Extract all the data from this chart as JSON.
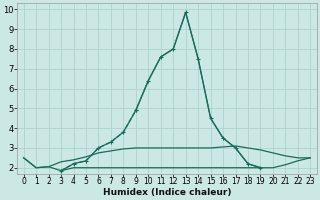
{
  "xlabel": "Humidex (Indice chaleur)",
  "bg_color": "#cce8e4",
  "grid_color": "#aed4cf",
  "line_color": "#1a6b5a",
  "xlim": [
    -0.5,
    23.5
  ],
  "ylim": [
    1.7,
    10.3
  ],
  "xticks": [
    0,
    1,
    2,
    3,
    4,
    5,
    6,
    7,
    8,
    9,
    10,
    11,
    12,
    13,
    14,
    15,
    16,
    17,
    18,
    19,
    20,
    21,
    22,
    23
  ],
  "yticks": [
    2,
    3,
    4,
    5,
    6,
    7,
    8,
    9,
    10
  ],
  "series": [
    {
      "x": [
        9,
        10,
        11,
        12,
        13,
        14,
        15,
        16,
        17,
        18,
        19
      ],
      "y": [
        4.9,
        6.4,
        7.6,
        8.0,
        9.85,
        7.5,
        4.5,
        3.5,
        3.0,
        2.2,
        2.0
      ],
      "marker": true
    },
    {
      "x": [
        3,
        4,
        5,
        6,
        7,
        8,
        9,
        10,
        11,
        12,
        13,
        14,
        15,
        16,
        17,
        18,
        19
      ],
      "y": [
        1.85,
        2.2,
        2.35,
        3.0,
        3.3,
        3.8,
        4.9,
        6.4,
        7.6,
        8.0,
        9.85,
        7.5,
        4.5,
        3.5,
        3.0,
        2.2,
        2.0
      ],
      "marker": false
    },
    {
      "x": [
        0,
        1,
        2,
        3,
        4,
        5,
        6,
        7,
        8,
        9,
        10,
        11,
        12,
        13,
        14,
        15,
        16,
        17,
        18,
        19,
        20,
        21,
        22,
        23
      ],
      "y": [
        2.5,
        2.0,
        2.05,
        2.3,
        2.4,
        2.55,
        2.75,
        2.85,
        2.95,
        3.0,
        3.0,
        3.0,
        3.0,
        3.0,
        3.0,
        3.0,
        3.05,
        3.1,
        3.0,
        2.9,
        2.75,
        2.6,
        2.5,
        2.5
      ],
      "marker": false
    },
    {
      "x": [
        0,
        1,
        2,
        3,
        4,
        5,
        6,
        7,
        8,
        9,
        10,
        11,
        12,
        13,
        14,
        15,
        16,
        17,
        18,
        19,
        20,
        21,
        22,
        23
      ],
      "y": [
        2.5,
        2.0,
        2.05,
        1.85,
        2.0,
        2.0,
        2.0,
        2.0,
        2.0,
        2.0,
        2.0,
        2.0,
        2.0,
        2.0,
        2.0,
        2.0,
        2.0,
        2.0,
        2.0,
        2.0,
        2.0,
        2.15,
        2.35,
        2.5
      ],
      "marker": false
    },
    {
      "x": [
        3,
        4,
        5,
        6,
        7,
        8,
        9
      ],
      "y": [
        1.85,
        2.2,
        2.35,
        3.0,
        3.3,
        3.8,
        4.9
      ],
      "marker": true
    }
  ]
}
